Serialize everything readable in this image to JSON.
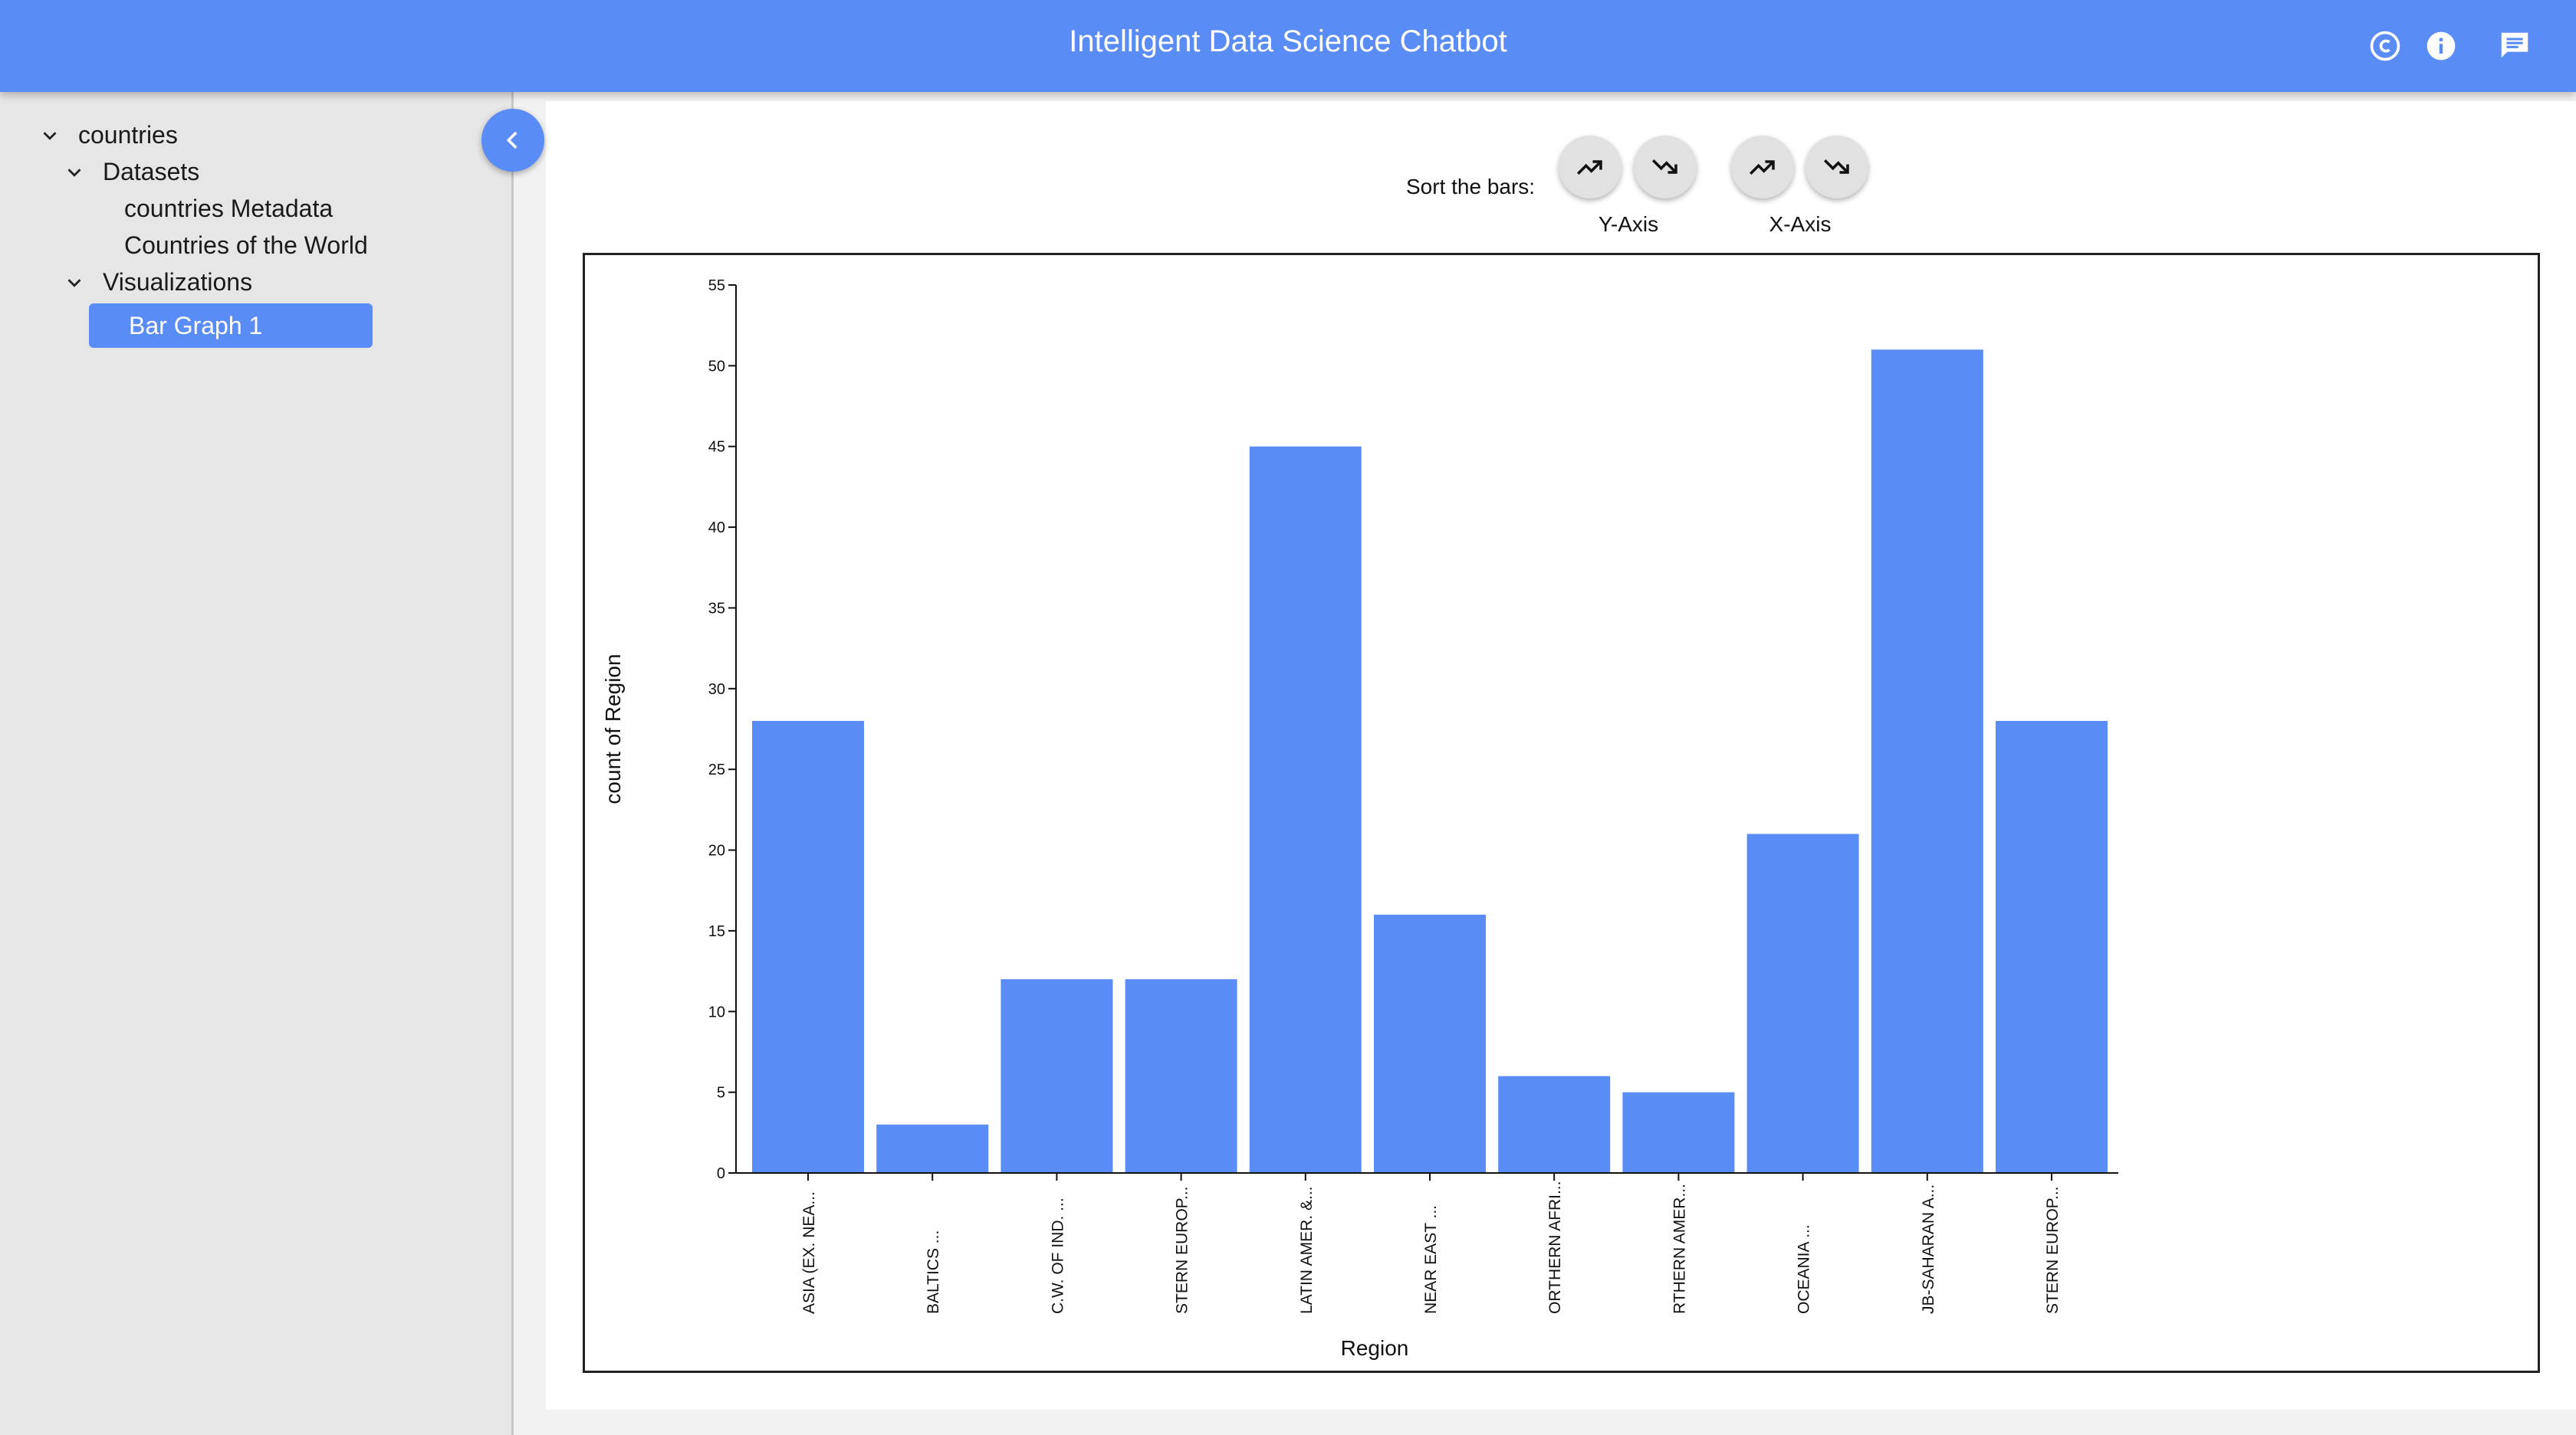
{
  "header": {
    "title": "Intelligent Data Science Chatbot",
    "icons": [
      "copyright-icon",
      "info-icon",
      "chat-icon"
    ]
  },
  "sidebar": {
    "tree": [
      {
        "label": "countries",
        "expanded": true
      },
      {
        "label": "Datasets",
        "expanded": true
      },
      {
        "label": "countries Metadata"
      },
      {
        "label": "Countries of the World"
      },
      {
        "label": "Visualizations",
        "expanded": true
      },
      {
        "label": "Bar Graph 1",
        "selected": true
      }
    ]
  },
  "sort": {
    "label": "Sort the bars:",
    "y_axis_label": "Y-Axis",
    "x_axis_label": "X-Axis"
  },
  "colors": {
    "accent": "#5a8cf5",
    "bar": "#5a8cf5",
    "button": "#e1e1e1"
  },
  "chart_data": {
    "type": "bar",
    "xlabel": "Region",
    "ylabel": "count of Region",
    "ylim": [
      0,
      55
    ],
    "yticks": [
      0,
      5,
      10,
      15,
      20,
      25,
      30,
      35,
      40,
      45,
      50,
      55
    ],
    "categories": [
      "ASIA (EX. NEA...",
      "BALTICS ...",
      "C.W. OF IND. ...",
      "STERN EUROP...",
      "LATIN AMER. &...",
      "NEAR EAST ...",
      "ORTHERN AFRI...",
      "RTHERN AMER...",
      "OCEANIA ...",
      "JB-SAHARAN A...",
      "STERN EUROP..."
    ],
    "values": [
      28,
      3,
      12,
      12,
      45,
      16,
      6,
      5,
      21,
      51,
      28
    ],
    "grid": false,
    "legend": "none"
  }
}
